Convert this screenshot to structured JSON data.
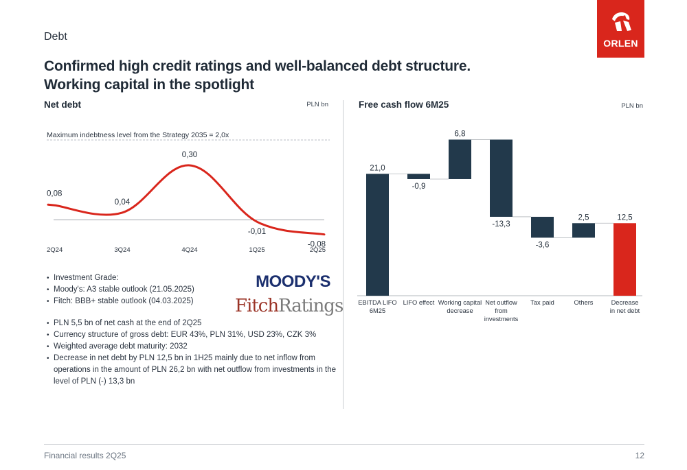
{
  "header": {
    "section": "Debt",
    "title_line1": "Confirmed high credit ratings and well-balanced debt structure.",
    "title_line2": "Working capital in the spotlight",
    "logo_text": "ORLEN"
  },
  "left": {
    "title": "Net debt",
    "unit": "PLN bn",
    "reference_label": "Maximum indebtness level from the Strategy 2035 = 2,0x"
  },
  "right": {
    "title": "Free cash flow 6M25",
    "unit": "PLN bn"
  },
  "chart_data": [
    {
      "type": "line",
      "title": "Net debt",
      "categories": [
        "2Q24",
        "3Q24",
        "4Q24",
        "1Q25",
        "2Q25"
      ],
      "values": [
        0.08,
        0.04,
        0.3,
        -0.01,
        -0.08
      ],
      "value_labels": [
        "0,08",
        "0,04",
        "0,30",
        "-0,01",
        "-0,08"
      ],
      "ylim": [
        -0.1,
        0.3
      ],
      "series_color": "#d9261c",
      "smooth": true,
      "zero_line": true
    },
    {
      "type": "bar",
      "subtype": "waterfall",
      "title": "Free cash flow 6M25",
      "categories": [
        [
          "EBITDA LIFO",
          "6M25"
        ],
        [
          "LIFO effect"
        ],
        [
          "Working capital",
          "decrease"
        ],
        [
          "Net outflow",
          "from",
          "investments"
        ],
        [
          "Tax paid"
        ],
        [
          "Others"
        ],
        [
          "Decrease",
          "in net debt"
        ]
      ],
      "values": [
        21.0,
        -0.9,
        6.8,
        -13.3,
        -3.6,
        2.5,
        12.5
      ],
      "value_labels": [
        "21,0",
        "-0,9",
        "6,8",
        "-13,3",
        "-3,6",
        "2,5",
        "12,5"
      ],
      "kinds": [
        "total",
        "delta",
        "delta",
        "delta",
        "delta",
        "delta",
        "total"
      ],
      "colors": [
        "#22394b",
        "#22394b",
        "#22394b",
        "#22394b",
        "#22394b",
        "#22394b",
        "#d9261c"
      ],
      "ylim": [
        0,
        27.9
      ]
    }
  ],
  "bullets": {
    "investment": "Investment Grade:",
    "moodys": "Moody's: A3 stable outlook (21.05.2025)",
    "fitch": "Fitch: BBB+ stable outlook (04.03.2025)",
    "cash": "PLN 5,5 bn of net cash at the end of 2Q25",
    "currency": "Currency structure of gross debt: EUR 43%, PLN 31%, USD 23%, CZK 3%",
    "maturity": "Weighted average debt maturity: 2032",
    "decrease": "Decrease in net debt by PLN 12,5 bn in 1H25 mainly due to net inflow from operations in the amount of PLN 26,2 bn with net outflow from investments in the level of PLN (-) 13,3 bn"
  },
  "logos": {
    "moodys": "MOODY'S",
    "fitch_a": "Fitch",
    "fitch_b": "Ratings"
  },
  "footer": {
    "left": "Financial results 2Q25",
    "page": "12"
  }
}
